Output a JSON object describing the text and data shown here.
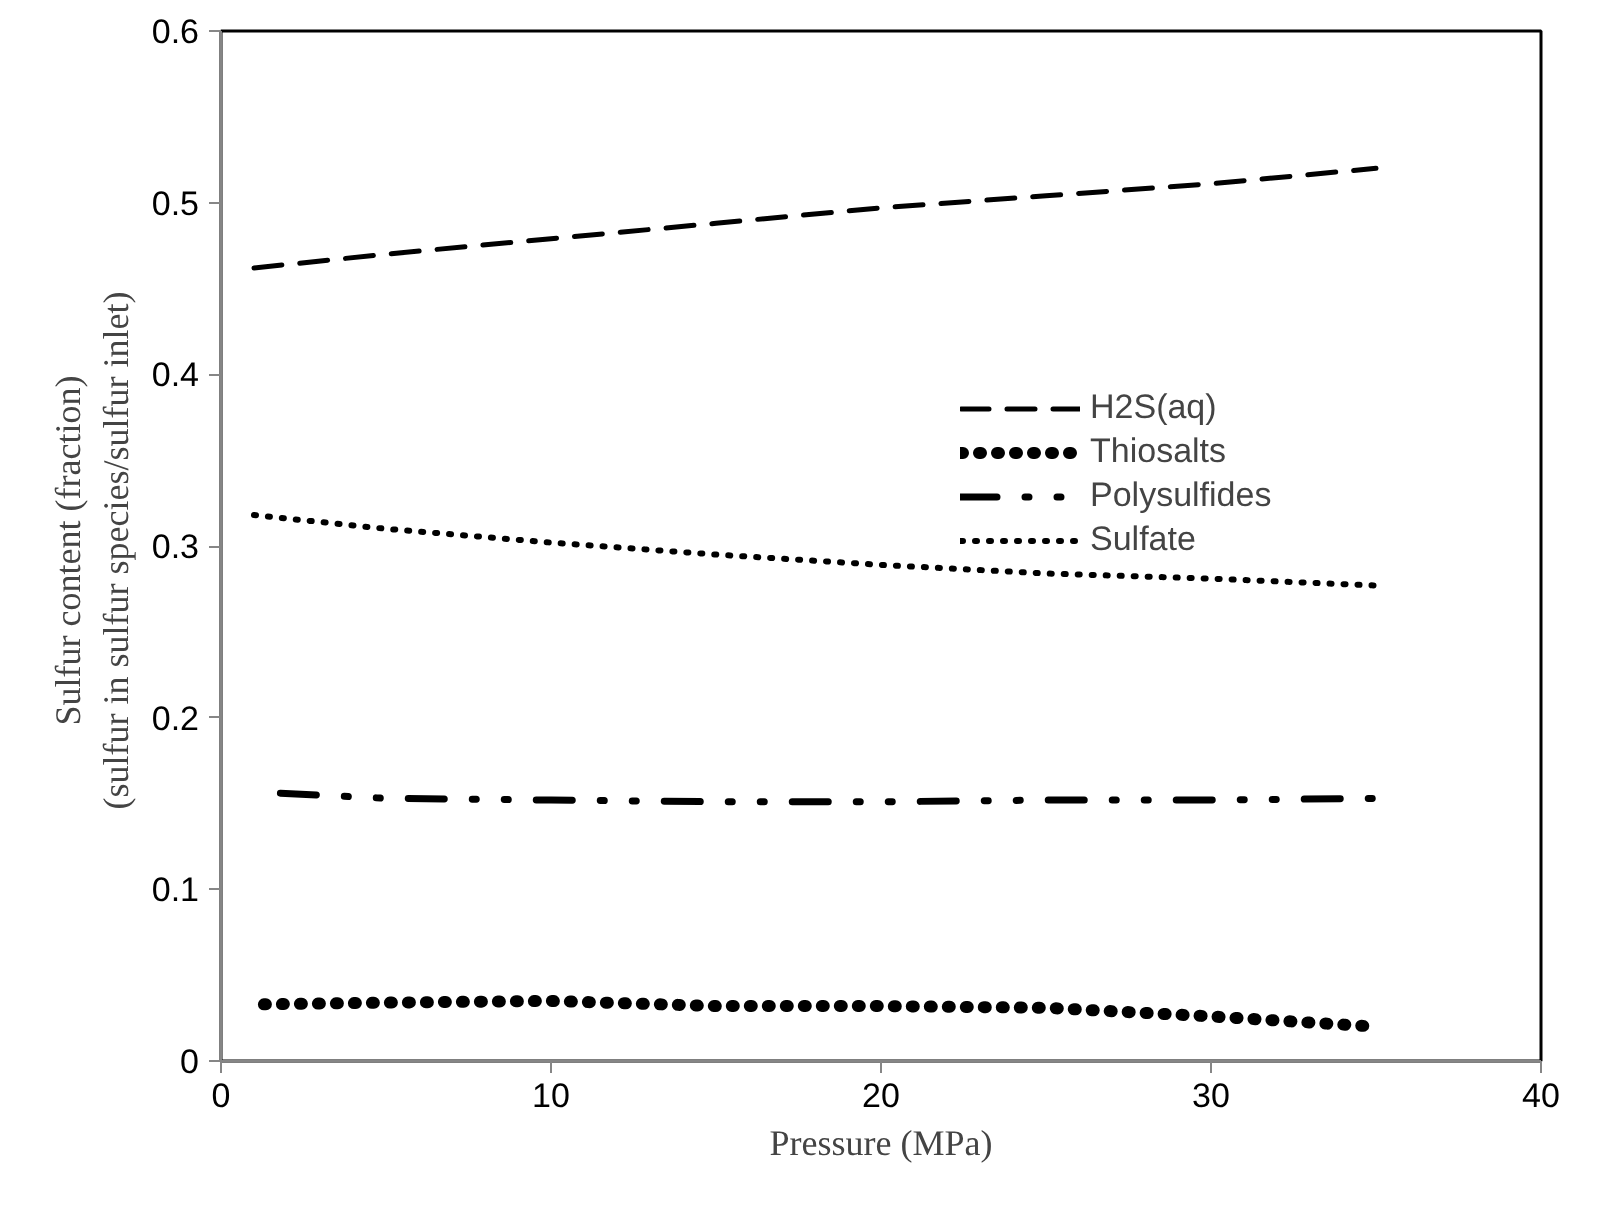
{
  "chart_data": {
    "type": "line",
    "xlabel": "Pressure (MPa)",
    "ylabel": "Sulfur content  (fraction)\n(sulfur in sulfur species/sulfur  inlet)",
    "xlim": [
      0,
      40
    ],
    "xticks": [
      0,
      10,
      20,
      30,
      40
    ],
    "ylim": [
      0,
      0.6
    ],
    "yticks": [
      0,
      0.1,
      0.2,
      0.3,
      0.4,
      0.5,
      0.6
    ],
    "grid": false,
    "legend": "center",
    "marker": "none",
    "series": [
      {
        "name": "H2S(aq)",
        "color": "#000000",
        "line_style": "dashed",
        "x": [
          1,
          5,
          10,
          15,
          20,
          25,
          30,
          35
        ],
        "values": [
          0.462,
          0.47,
          0.479,
          0.488,
          0.497,
          0.504,
          0.511,
          0.52
        ]
      },
      {
        "name": "Thiosalts",
        "color": "#000000",
        "line_style": "dotted",
        "x": [
          1.3,
          5,
          10,
          15,
          20,
          25,
          30,
          35
        ],
        "values": [
          0.033,
          0.034,
          0.035,
          0.032,
          0.032,
          0.031,
          0.026,
          0.02
        ]
      },
      {
        "name": "Polysulfides",
        "color": "#000000",
        "line_style": "dashdot",
        "x": [
          1.8,
          5,
          10,
          15,
          20,
          25,
          30,
          35
        ],
        "values": [
          0.156,
          0.153,
          0.152,
          0.151,
          0.151,
          0.152,
          0.152,
          0.153
        ]
      },
      {
        "name": "Sulfate",
        "color": "#000000",
        "line_style": "dotted",
        "x": [
          1,
          5,
          10,
          15,
          20,
          25,
          30,
          35
        ],
        "values": [
          0.318,
          0.31,
          0.302,
          0.295,
          0.289,
          0.284,
          0.281,
          0.277
        ]
      }
    ]
  }
}
